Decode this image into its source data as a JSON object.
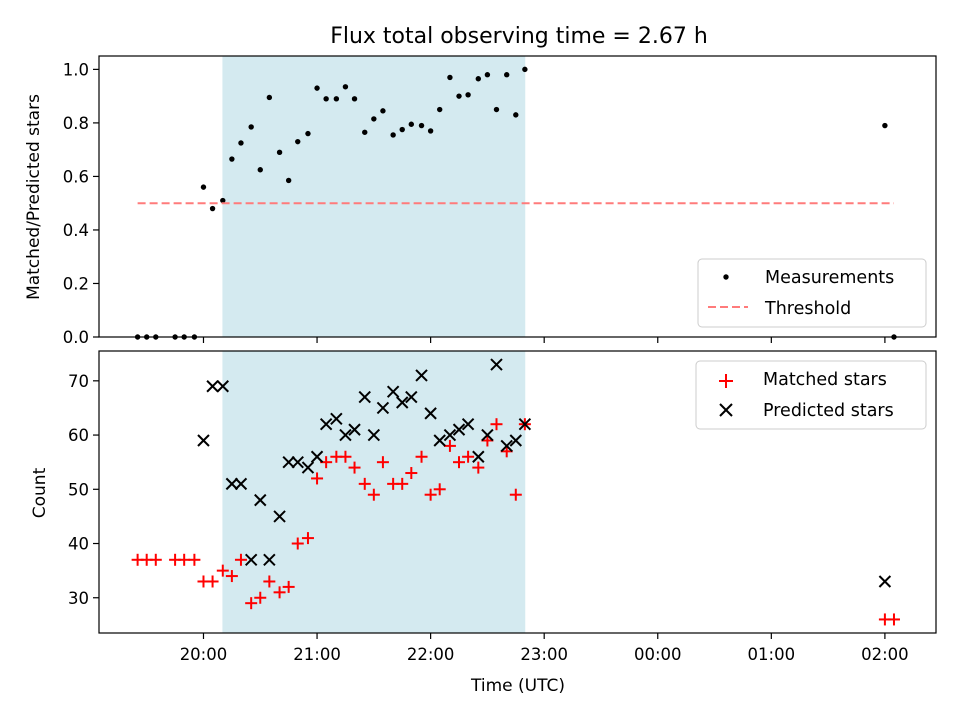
{
  "figure": {
    "title": "Flux total observing time = 2.67 h",
    "x_label": "Time (UTC)",
    "x_tick_labels": [
      "20:00",
      "21:00",
      "22:00",
      "23:00",
      "00:00",
      "01:00",
      "02:00"
    ],
    "highlight_color": "#d4eaf0"
  },
  "chart_data": [
    {
      "type": "scatter",
      "panel": "top",
      "ylabel": "Matched/Predicted stars",
      "ylim": [
        0,
        1.05
      ],
      "y_ticks": [
        "0.0",
        "0.2",
        "0.4",
        "0.6",
        "0.8",
        "1.0"
      ],
      "x_unit": "hours since 20:00 UTC",
      "xlim": [
        -0.92,
        6.45
      ],
      "highlight_span": [
        "20:10",
        "22:50"
      ],
      "legend_placement": "lower right",
      "series": [
        {
          "name": "Measurements",
          "marker": "dot",
          "color": "#000000",
          "points": [
            [
              -0.58,
              0.0
            ],
            [
              -0.5,
              0.0
            ],
            [
              -0.42,
              0.0
            ],
            [
              -0.25,
              0.0
            ],
            [
              -0.17,
              0.0
            ],
            [
              -0.08,
              0.0
            ],
            [
              0.0,
              0.56
            ],
            [
              0.08,
              0.48
            ],
            [
              0.17,
              0.51
            ],
            [
              0.25,
              0.665
            ],
            [
              0.33,
              0.725
            ],
            [
              0.42,
              0.785
            ],
            [
              0.5,
              0.625
            ],
            [
              0.58,
              0.895
            ],
            [
              0.67,
              0.69
            ],
            [
              0.75,
              0.585
            ],
            [
              0.83,
              0.73
            ],
            [
              0.92,
              0.76
            ],
            [
              1.0,
              0.93
            ],
            [
              1.08,
              0.89
            ],
            [
              1.17,
              0.89
            ],
            [
              1.25,
              0.935
            ],
            [
              1.33,
              0.89
            ],
            [
              1.42,
              0.765
            ],
            [
              1.5,
              0.815
            ],
            [
              1.58,
              0.845
            ],
            [
              1.67,
              0.755
            ],
            [
              1.75,
              0.775
            ],
            [
              1.83,
              0.795
            ],
            [
              1.92,
              0.79
            ],
            [
              2.0,
              0.77
            ],
            [
              2.08,
              0.85
            ],
            [
              2.17,
              0.97
            ],
            [
              2.25,
              0.9
            ],
            [
              2.33,
              0.905
            ],
            [
              2.42,
              0.965
            ],
            [
              2.5,
              0.98
            ],
            [
              2.58,
              0.85
            ],
            [
              2.67,
              0.98
            ],
            [
              2.75,
              0.83
            ],
            [
              2.83,
              1.0
            ],
            [
              6.0,
              0.79
            ],
            [
              6.08,
              0.0
            ]
          ]
        },
        {
          "name": "Threshold",
          "marker": "dashed-line",
          "color": "#ff7b7b",
          "points": [
            [
              -0.58,
              0.5
            ],
            [
              6.08,
              0.5
            ]
          ]
        }
      ]
    },
    {
      "type": "scatter",
      "panel": "bottom",
      "ylabel": "Count",
      "ylim": [
        23.5,
        75.5
      ],
      "y_ticks": [
        "30",
        "40",
        "50",
        "60",
        "70"
      ],
      "x_unit": "hours since 20:00 UTC",
      "xlim": [
        -0.92,
        6.45
      ],
      "highlight_span": [
        "20:10",
        "22:50"
      ],
      "legend_placement": "upper right",
      "series": [
        {
          "name": "Matched stars",
          "marker": "plus",
          "color": "#ff0000",
          "points": [
            [
              -0.58,
              37
            ],
            [
              -0.5,
              37
            ],
            [
              -0.42,
              37
            ],
            [
              -0.25,
              37
            ],
            [
              -0.17,
              37
            ],
            [
              -0.08,
              37
            ],
            [
              0.0,
              33
            ],
            [
              0.08,
              33
            ],
            [
              0.17,
              35
            ],
            [
              0.25,
              34
            ],
            [
              0.33,
              37
            ],
            [
              0.42,
              29
            ],
            [
              0.5,
              30
            ],
            [
              0.58,
              33
            ],
            [
              0.67,
              31
            ],
            [
              0.75,
              32
            ],
            [
              0.83,
              40
            ],
            [
              0.92,
              41
            ],
            [
              1.0,
              52
            ],
            [
              1.08,
              55
            ],
            [
              1.17,
              56
            ],
            [
              1.25,
              56
            ],
            [
              1.33,
              54
            ],
            [
              1.42,
              51
            ],
            [
              1.5,
              49
            ],
            [
              1.58,
              55
            ],
            [
              1.67,
              51
            ],
            [
              1.75,
              51
            ],
            [
              1.83,
              53
            ],
            [
              1.92,
              56
            ],
            [
              2.0,
              49
            ],
            [
              2.08,
              50
            ],
            [
              2.17,
              58
            ],
            [
              2.25,
              55
            ],
            [
              2.33,
              56
            ],
            [
              2.42,
              54
            ],
            [
              2.5,
              59
            ],
            [
              2.58,
              62
            ],
            [
              2.67,
              57
            ],
            [
              2.75,
              49
            ],
            [
              2.83,
              62
            ],
            [
              6.0,
              26
            ],
            [
              6.08,
              26
            ]
          ]
        },
        {
          "name": "Predicted stars",
          "marker": "x",
          "color": "#000000",
          "points": [
            [
              0.0,
              59
            ],
            [
              0.08,
              69
            ],
            [
              0.17,
              69
            ],
            [
              0.25,
              51
            ],
            [
              0.33,
              51
            ],
            [
              0.42,
              37
            ],
            [
              0.5,
              48
            ],
            [
              0.58,
              37
            ],
            [
              0.67,
              45
            ],
            [
              0.75,
              55
            ],
            [
              0.83,
              55
            ],
            [
              0.92,
              54
            ],
            [
              1.0,
              56
            ],
            [
              1.08,
              62
            ],
            [
              1.17,
              63
            ],
            [
              1.25,
              60
            ],
            [
              1.33,
              61
            ],
            [
              1.42,
              67
            ],
            [
              1.5,
              60
            ],
            [
              1.58,
              65
            ],
            [
              1.67,
              68
            ],
            [
              1.75,
              66
            ],
            [
              1.83,
              67
            ],
            [
              1.92,
              71
            ],
            [
              2.0,
              64
            ],
            [
              2.08,
              59
            ],
            [
              2.17,
              60
            ],
            [
              2.25,
              61
            ],
            [
              2.33,
              62
            ],
            [
              2.42,
              56
            ],
            [
              2.5,
              60
            ],
            [
              2.58,
              73
            ],
            [
              2.67,
              58
            ],
            [
              2.75,
              59
            ],
            [
              2.83,
              62
            ],
            [
              6.0,
              33
            ]
          ]
        }
      ]
    }
  ]
}
